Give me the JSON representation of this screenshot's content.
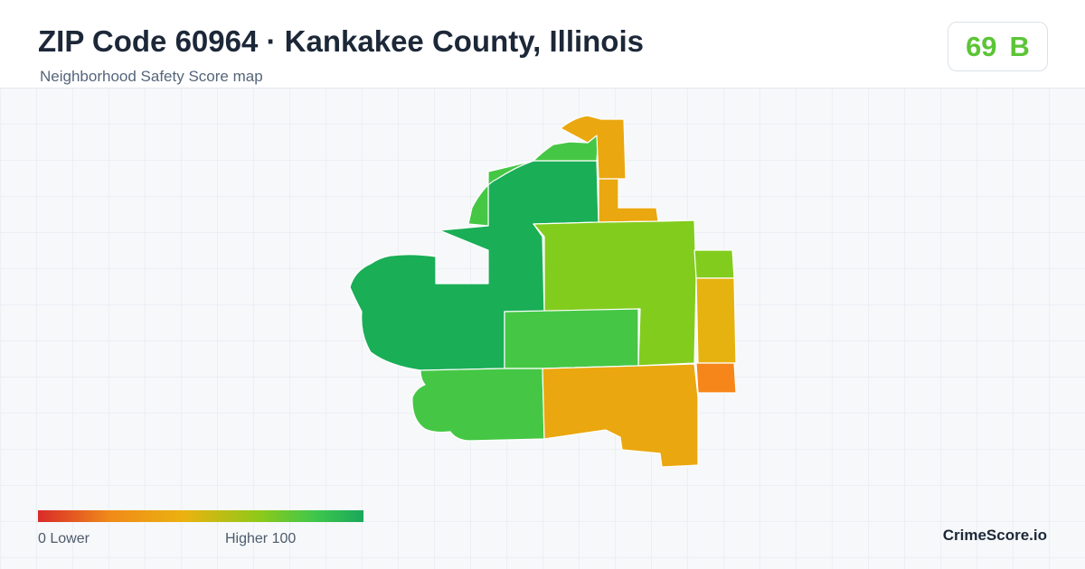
{
  "header": {
    "title": "ZIP Code 60964 · Kankakee County, Illinois",
    "subtitle": "Neighborhood Safety Score map"
  },
  "score": {
    "value": "69",
    "grade": "B",
    "color": "#5cc536"
  },
  "legend": {
    "min_label": "0  Lower",
    "max_label": "Higher  100",
    "colors": [
      "#d92a28",
      "#f08a1a",
      "#ebb20f",
      "#8ec919",
      "#3fc74b",
      "#19a85b"
    ]
  },
  "map": {
    "areas": [
      {
        "id": "northwest-large",
        "color": "#1aae57"
      },
      {
        "id": "north-strip",
        "color": "#45c745"
      },
      {
        "id": "north-central",
        "color": "#1aae57"
      },
      {
        "id": "north-tip",
        "color": "#eaa70f"
      },
      {
        "id": "north-east-narrow",
        "color": "#eaa70f"
      },
      {
        "id": "east-large",
        "color": "#82cc1e"
      },
      {
        "id": "east-small-upper",
        "color": "#82cc1e"
      },
      {
        "id": "east-yellow",
        "color": "#e6b20f"
      },
      {
        "id": "east-orange",
        "color": "#f6861a"
      },
      {
        "id": "center-mid",
        "color": "#45c745"
      },
      {
        "id": "south-west",
        "color": "#45c745"
      },
      {
        "id": "south-east",
        "color": "#eaa70f"
      }
    ]
  },
  "brand": "CrimeScore.io"
}
